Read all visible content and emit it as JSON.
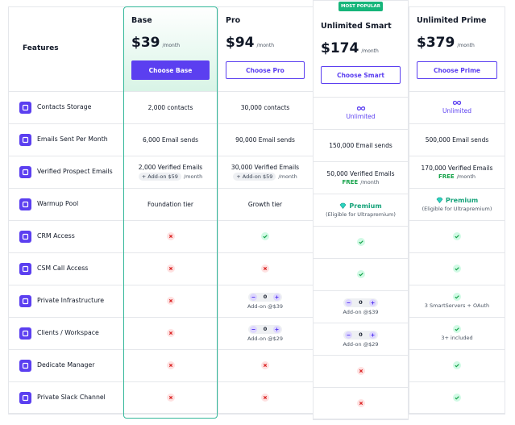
{
  "header": {
    "features_label": "Features",
    "most_popular_badge": "MOST POPULAR"
  },
  "plans": [
    {
      "name": "Base",
      "price": "$39",
      "period": "/month",
      "button": "Choose Base"
    },
    {
      "name": "Pro",
      "price": "$94",
      "period": "/month",
      "button": "Choose Pro"
    },
    {
      "name": "Unlimited Smart",
      "price": "$174",
      "period": "/month",
      "button": "Choose Smart"
    },
    {
      "name": "Unlimited Prime",
      "price": "$379",
      "period": "/month",
      "button": "Choose Prime"
    }
  ],
  "features": [
    {
      "name": "Contacts Storage",
      "cells": [
        {
          "text": "2,000 contacts"
        },
        {
          "text": "30,000 contacts"
        },
        {
          "icon": "infinity",
          "text": "Unlimited"
        },
        {
          "icon": "infinity",
          "text": "Unlimited"
        }
      ]
    },
    {
      "name": "Emails Sent Per Month",
      "cells": [
        {
          "text": "6,000 Email sends"
        },
        {
          "text": "90,000 Email sends"
        },
        {
          "text": "150,000 Email sends"
        },
        {
          "text": "500,000 Email sends"
        }
      ]
    },
    {
      "name": "Verified Prospect Emails",
      "cells": [
        {
          "text": "2,000 Verified Emails",
          "addon": "+ Add-on $59",
          "addon_suffix": "/month"
        },
        {
          "text": "30,000 Verified Emails",
          "addon": "+ Add-on $59",
          "addon_suffix": "/month"
        },
        {
          "text": "50,000 Verified Emails",
          "free": "FREE",
          "free_suffix": "/month"
        },
        {
          "text": "170,000 Verified Emails",
          "free": "FREE",
          "free_suffix": "/month"
        }
      ]
    },
    {
      "name": "Warmup Pool",
      "cells": [
        {
          "text": "Foundation tier"
        },
        {
          "text": "Growth tier"
        },
        {
          "icon": "diamond",
          "text": "Premium",
          "note": "(Eligible for Ultrapremium)"
        },
        {
          "icon": "diamond",
          "text": "Premium",
          "note": "(Eligible for Ultrapremium)"
        }
      ]
    },
    {
      "name": "CRM Access",
      "cells": [
        {
          "icon": "cross"
        },
        {
          "icon": "check"
        },
        {
          "icon": "check"
        },
        {
          "icon": "check"
        }
      ]
    },
    {
      "name": "CSM Call Access",
      "cells": [
        {
          "icon": "cross"
        },
        {
          "icon": "cross"
        },
        {
          "icon": "check"
        },
        {
          "icon": "check"
        }
      ]
    },
    {
      "name": "Private Infrastructure",
      "cells": [
        {
          "icon": "cross"
        },
        {
          "stepper": "0",
          "note": "Add-on @$39"
        },
        {
          "stepper": "0",
          "note": "Add-on @$39"
        },
        {
          "icon": "check",
          "note": "3 SmartServers + OAuth"
        }
      ]
    },
    {
      "name": "Clients / Workspace",
      "cells": [
        {
          "icon": "cross"
        },
        {
          "stepper": "0",
          "note": "Add-on @$29"
        },
        {
          "stepper": "0",
          "note": "Add-on @$29"
        },
        {
          "icon": "check",
          "note": "3+ included"
        }
      ]
    },
    {
      "name": "Dedicate Manager",
      "cells": [
        {
          "icon": "cross"
        },
        {
          "icon": "cross"
        },
        {
          "icon": "cross"
        },
        {
          "icon": "check"
        }
      ]
    },
    {
      "name": "Private Slack Channel",
      "cells": [
        {
          "icon": "cross"
        },
        {
          "icon": "cross"
        },
        {
          "icon": "cross"
        },
        {
          "icon": "check"
        }
      ]
    }
  ]
}
